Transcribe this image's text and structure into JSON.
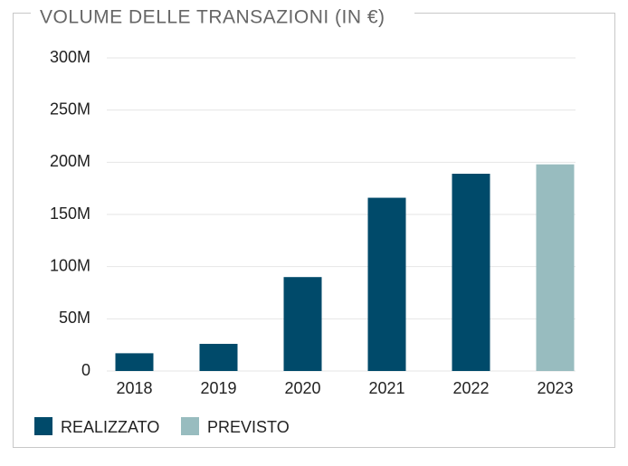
{
  "chart_data": {
    "type": "bar",
    "title": "VOLUME DELLE TRANSAZIONI (IN €)",
    "categories": [
      "2018",
      "2019",
      "2020",
      "2021",
      "2022",
      "2023"
    ],
    "series": [
      {
        "name": "REALIZZATO",
        "color": "#004a6a",
        "values": [
          17000000,
          26000000,
          90000000,
          166000000,
          189000000,
          null
        ]
      },
      {
        "name": "PREVISTO",
        "color": "#98bcbf",
        "values": [
          null,
          null,
          null,
          null,
          null,
          198000000
        ]
      }
    ],
    "ylim": [
      0,
      300000000
    ],
    "yticks": [
      0,
      {
        "value": 50000000,
        "label": "50M"
      },
      {
        "value": 100000000,
        "label": "100M"
      },
      {
        "value": 150000000,
        "label": "150M"
      },
      {
        "value": 200000000,
        "label": "200M"
      },
      {
        "value": 250000000,
        "label": "250M"
      },
      {
        "value": 300000000,
        "label": "300M"
      }
    ],
    "grid": true
  }
}
